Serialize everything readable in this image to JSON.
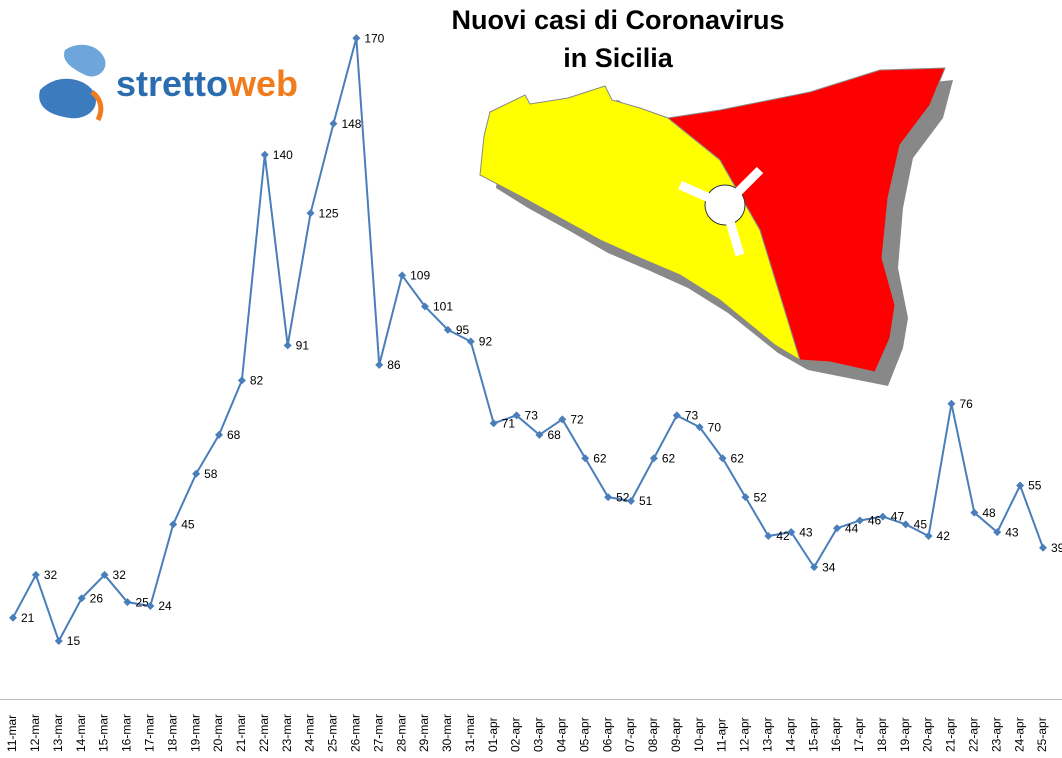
{
  "logo": [
    "stretto",
    "web"
  ],
  "chart_data": {
    "type": "line",
    "title": [
      "Nuovi casi di Coronavirus",
      "in Sicilia"
    ],
    "categories": [
      "11-mar",
      "12-mar",
      "13-mar",
      "14-mar",
      "15-mar",
      "16-mar",
      "17-mar",
      "18-mar",
      "19-mar",
      "20-mar",
      "21-mar",
      "22-mar",
      "23-mar",
      "24-mar",
      "25-mar",
      "26-mar",
      "27-mar",
      "28-mar",
      "29-mar",
      "30-mar",
      "31-mar",
      "01-apr",
      "02-apr",
      "03-apr",
      "04-apr",
      "05-apr",
      "06-apr",
      "07-apr",
      "08-apr",
      "09-apr",
      "10-apr",
      "11-apr",
      "12-apr",
      "13-apr",
      "14-apr",
      "15-apr",
      "16-apr",
      "17-apr",
      "18-apr",
      "19-apr",
      "20-apr",
      "21-apr",
      "22-apr",
      "23-apr",
      "24-apr",
      "25-apr"
    ],
    "values": [
      21,
      32,
      15,
      26,
      32,
      25,
      24,
      45,
      58,
      68,
      82,
      140,
      91,
      125,
      148,
      170,
      86,
      109,
      101,
      95,
      92,
      71,
      73,
      68,
      72,
      62,
      52,
      51,
      62,
      73,
      70,
      62,
      52,
      42,
      43,
      34,
      44,
      46,
      47,
      45,
      42,
      76,
      48,
      43,
      55,
      39
    ],
    "color": "#4a7ebb",
    "ylim": [
      0,
      180
    ]
  }
}
